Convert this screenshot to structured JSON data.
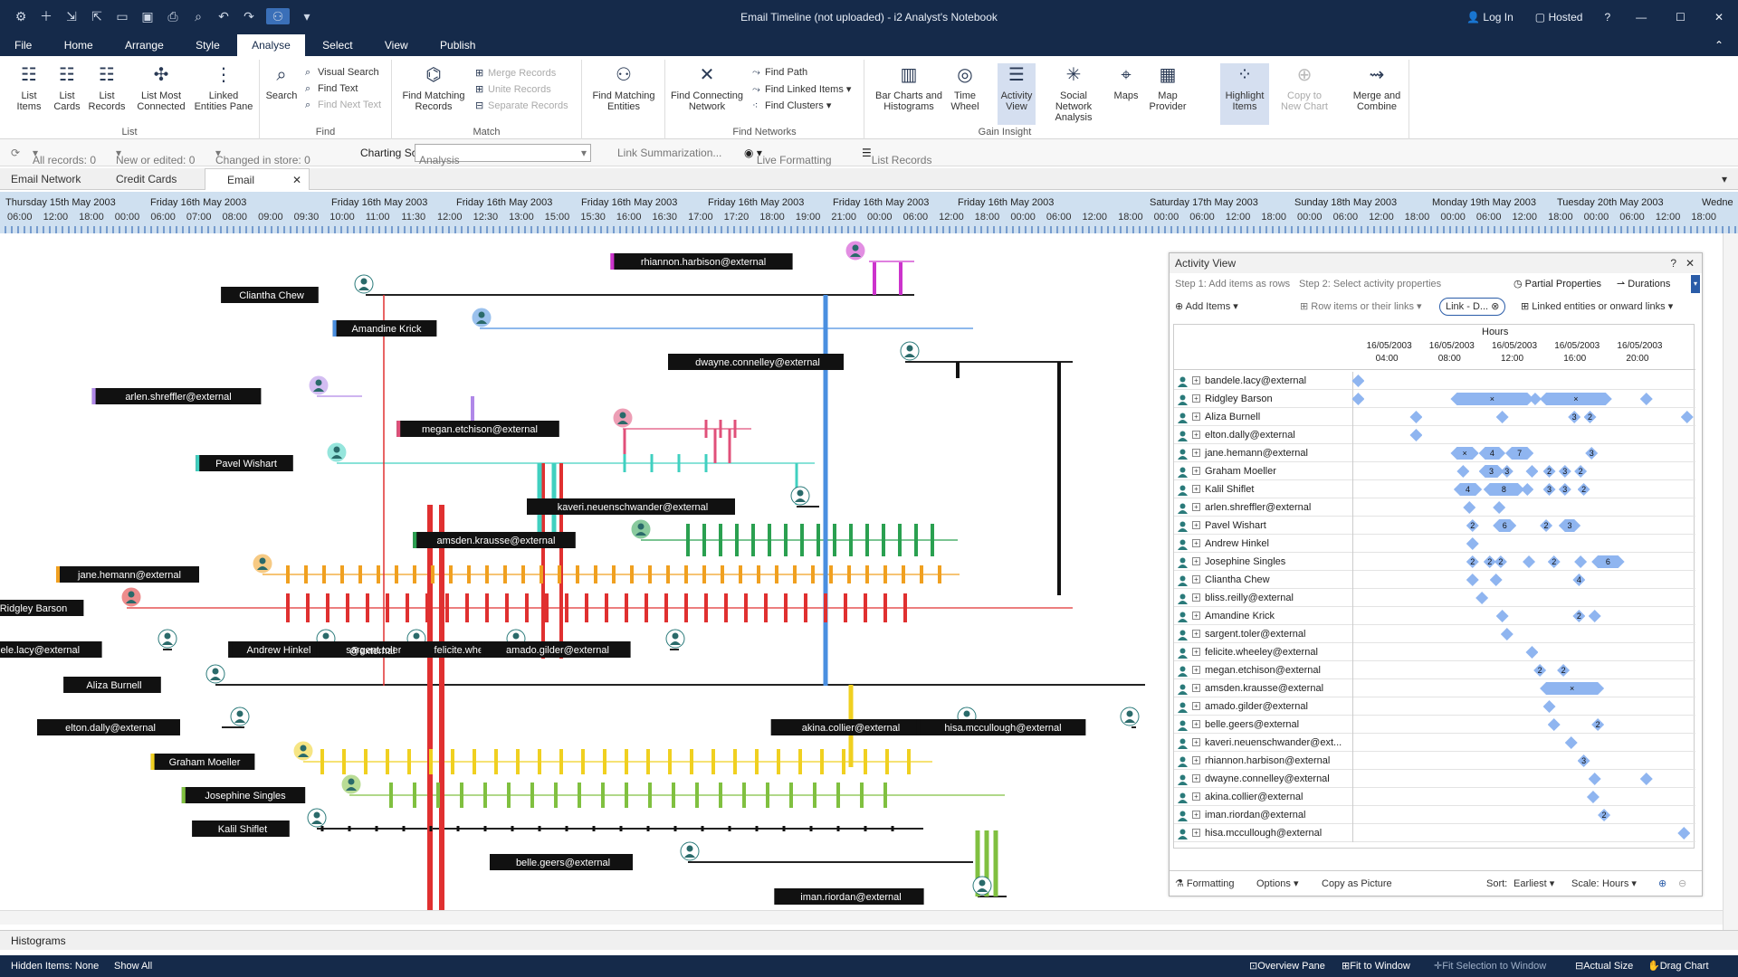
{
  "window": {
    "title": "Email Timeline (not uploaded) - i2 Analyst's Notebook",
    "login": "Log In",
    "hosted": "Hosted",
    "help": "?"
  },
  "menu": [
    "File",
    "Home",
    "Arrange",
    "Style",
    "Analyse",
    "Select",
    "View",
    "Publish"
  ],
  "ribbon": {
    "list": {
      "label": "List",
      "buttons": [
        "List Items",
        "List Cards",
        "List Records",
        "List Most Connected",
        "Linked Entities Pane"
      ]
    },
    "find": {
      "label": "Find",
      "search": "Search",
      "visual_search": "Visual Search",
      "find_text": "Find Text",
      "find_next_text": "Find Next Text"
    },
    "match": {
      "label": "Match",
      "find_matching_records": "Find Matching Records",
      "merge_records": "Merge Records",
      "unite_records": "Unite Records",
      "separate_records": "Separate Records",
      "find_matching_entities": "Find Matching Entities"
    },
    "find_networks": {
      "label": "Find Networks",
      "find_connecting_network": "Find Connecting Network",
      "find_path": "Find Path",
      "find_linked_items": "Find Linked Items",
      "find_clusters": "Find Clusters"
    },
    "gain_insight": {
      "label": "Gain Insight",
      "bar_charts": "Bar Charts and Histograms",
      "time_wheel": "Time Wheel",
      "activity_view": "Activity View",
      "sna": "Social Network Analysis",
      "maps": "Maps",
      "map_provider": "Map Provider",
      "highlight_items": "Highlight Items",
      "copy_to_new_chart": "Copy to New Chart",
      "merge_and_combine": "Merge and Combine"
    }
  },
  "toolbar": {
    "all_records": "All records: 0",
    "new_or_edited": "New or edited: 0",
    "changed_in_store": "Changed in store: 0",
    "charting_scheme_label": "Charting Scheme:",
    "charting_scheme_value": "Analysis",
    "link_summarization": "Link Summarization...",
    "live_formatting": "Live Formatting",
    "list_records": "List Records"
  },
  "tabs": [
    "Email Network",
    "Credit Cards",
    "Email Timeline"
  ],
  "timeline": {
    "dates": [
      "Thursday 15th May 2003",
      "Friday 16th May 2003",
      "Friday 16th May 2003",
      "Friday 16th May 2003",
      "Friday 16th May 2003",
      "Friday 16th May 2003",
      "Friday 16th May 2003",
      "Friday 16th May 2003",
      "Saturday 17th May 2003",
      "Sunday 18th May 2003",
      "Monday 19th May 2003",
      "Tuesday 20th May 2003",
      "Wedne"
    ],
    "times": [
      "06:00",
      "12:00",
      "18:00",
      "00:00",
      "06:00",
      "07:00",
      "08:00",
      "09:00",
      "09:30",
      "10:00",
      "11:00",
      "11:30",
      "12:00",
      "12:30",
      "13:00",
      "15:00",
      "15:30",
      "16:00",
      "16:30",
      "17:00",
      "17:20",
      "18:00",
      "19:00",
      "21:00",
      "00:00",
      "06:00",
      "12:00",
      "18:00",
      "00:00",
      "06:00",
      "12:00",
      "18:00",
      "00:00",
      "06:00",
      "12:00",
      "18:00",
      "00:00",
      "06:00",
      "12:00",
      "18:00",
      "00:00",
      "06:00",
      "12:00",
      "18:00",
      "00:00",
      "06:00",
      "12:00",
      "18:00"
    ]
  },
  "chart": {
    "entities": [
      {
        "label": "rhiannon.harbison@external",
        "color": "#cc33cc"
      },
      {
        "label": "Cliantha Chew",
        "color": "#111111"
      },
      {
        "label": "Amandine Krick",
        "color": "#4a8fe0"
      },
      {
        "label": "dwayne.connelley@external",
        "color": "#111111"
      },
      {
        "label": "arlen.shreffler@external",
        "color": "#b088e8"
      },
      {
        "label": "megan.etchison@external",
        "color": "#e0507a"
      },
      {
        "label": "Pavel Wishart",
        "color": "#40d0c0"
      },
      {
        "label": "kaveri.neuenschwander@external",
        "color": "#111111"
      },
      {
        "label": "amsden.krausse@external",
        "color": "#2aa050"
      },
      {
        "label": "jane.hemann@external",
        "color": "#f0a020"
      },
      {
        "label": "Ridgley Barson",
        "color": "#e03030"
      },
      {
        "label": "bandele.lacy@external",
        "color": "#111111"
      },
      {
        "label": "Andrew Hinkel",
        "color": "#111111"
      },
      {
        "label": "sargent.toler@external",
        "color": "#111111"
      },
      {
        "label": "felicite.wheeley@external",
        "color": "#111111"
      },
      {
        "label": "amado.gilder@external",
        "color": "#111111"
      },
      {
        "label": "Aliza Burnell",
        "color": "#111111"
      },
      {
        "label": "elton.dally@external",
        "color": "#111111"
      },
      {
        "label": "akina.collier@external",
        "color": "#111111"
      },
      {
        "label": "hisa.mccullough@external",
        "color": "#111111"
      },
      {
        "label": "Graham Moeller",
        "color": "#f0d020"
      },
      {
        "label": "Josephine Singles",
        "color": "#80c040"
      },
      {
        "label": "Kalil Shiflet",
        "color": "#111111"
      },
      {
        "label": "belle.geers@external",
        "color": "#111111"
      },
      {
        "label": "iman.riordan@external",
        "color": "#111111"
      }
    ],
    "overlap_label": "@external"
  },
  "activity_view": {
    "title": "Activity View",
    "step1": "Step 1: Add items as rows",
    "step2": "Step 2: Select activity properties",
    "partial_properties": "Partial Properties",
    "durations": "Durations",
    "add_items": "Add Items",
    "row_items": "Row items or their links",
    "link_filter": "Link - D...",
    "linked_entities": "Linked entities or onward links",
    "axis_title": "Hours",
    "axis_dates": [
      "16/05/2003",
      "16/05/2003",
      "16/05/2003",
      "16/05/2003",
      "16/05/2003"
    ],
    "axis_times": [
      "04:00",
      "08:00",
      "12:00",
      "16:00",
      "20:00"
    ],
    "rows": [
      {
        "name": "bandele.lacy@external",
        "bars": [
          {
            "start": 0.2,
            "end": 0.2,
            "label": ""
          }
        ]
      },
      {
        "name": "Ridgley Barson",
        "bars": [
          {
            "start": 0.2,
            "end": 0.2,
            "label": ""
          },
          {
            "start": 6.5,
            "end": 11.0,
            "label": "×"
          },
          {
            "start": 11.5,
            "end": 11.5,
            "label": ""
          },
          {
            "start": 12.2,
            "end": 16.0,
            "label": "×"
          },
          {
            "start": 18.6,
            "end": 18.6,
            "label": ""
          }
        ]
      },
      {
        "name": "Aliza Burnell",
        "bars": [
          {
            "start": 3.9,
            "end": 3.9,
            "label": ""
          },
          {
            "start": 9.4,
            "end": 9.4,
            "label": ""
          },
          {
            "start": 14.0,
            "end": 14.0,
            "label": "3"
          },
          {
            "start": 15.0,
            "end": 15.0,
            "label": "2"
          },
          {
            "start": 21.2,
            "end": 21.2,
            "label": ""
          }
        ]
      },
      {
        "name": "elton.dally@external",
        "bars": [
          {
            "start": 3.9,
            "end": 3.9,
            "label": ""
          }
        ]
      },
      {
        "name": "jane.hemann@external",
        "bars": [
          {
            "start": 6.5,
            "end": 7.5,
            "label": "×"
          },
          {
            "start": 8.3,
            "end": 9.2,
            "label": "4"
          },
          {
            "start": 10.0,
            "end": 11.0,
            "label": "7"
          },
          {
            "start": 15.1,
            "end": 15.1,
            "label": "3"
          }
        ]
      },
      {
        "name": "Graham Moeller",
        "bars": [
          {
            "start": 6.9,
            "end": 6.9,
            "label": ""
          },
          {
            "start": 8.3,
            "end": 9.1,
            "label": "3"
          },
          {
            "start": 9.7,
            "end": 9.7,
            "label": "3"
          },
          {
            "start": 11.3,
            "end": 11.3,
            "label": ""
          },
          {
            "start": 12.4,
            "end": 12.4,
            "label": "2"
          },
          {
            "start": 13.4,
            "end": 13.4,
            "label": "3"
          },
          {
            "start": 14.4,
            "end": 14.4,
            "label": "2"
          }
        ]
      },
      {
        "name": "Kalil Shiflet",
        "bars": [
          {
            "start": 6.7,
            "end": 7.7,
            "label": "4"
          },
          {
            "start": 8.6,
            "end": 10.4,
            "label": "8"
          },
          {
            "start": 11.0,
            "end": 11.0,
            "label": ""
          },
          {
            "start": 12.4,
            "end": 12.4,
            "label": "3"
          },
          {
            "start": 13.4,
            "end": 13.4,
            "label": "3"
          },
          {
            "start": 14.6,
            "end": 14.6,
            "label": "2"
          }
        ]
      },
      {
        "name": "arlen.shreffler@external",
        "bars": [
          {
            "start": 7.3,
            "end": 7.3,
            "label": ""
          },
          {
            "start": 9.2,
            "end": 9.2,
            "label": ""
          }
        ]
      },
      {
        "name": "Pavel Wishart",
        "bars": [
          {
            "start": 7.5,
            "end": 7.5,
            "label": "2"
          },
          {
            "start": 9.2,
            "end": 9.9,
            "label": "6"
          },
          {
            "start": 12.2,
            "end": 12.2,
            "label": "2"
          },
          {
            "start": 13.4,
            "end": 14.0,
            "label": "3"
          }
        ]
      },
      {
        "name": "Andrew Hinkel",
        "bars": [
          {
            "start": 7.5,
            "end": 7.5,
            "label": ""
          }
        ]
      },
      {
        "name": "Josephine Singles",
        "bars": [
          {
            "start": 7.5,
            "end": 7.5,
            "label": "2"
          },
          {
            "start": 8.6,
            "end": 8.6,
            "label": "2"
          },
          {
            "start": 9.3,
            "end": 9.3,
            "label": "2"
          },
          {
            "start": 11.1,
            "end": 11.1,
            "label": ""
          },
          {
            "start": 12.7,
            "end": 12.7,
            "label": "2"
          },
          {
            "start": 14.4,
            "end": 14.4,
            "label": ""
          },
          {
            "start": 15.5,
            "end": 16.8,
            "label": "6"
          }
        ]
      },
      {
        "name": "Cliantha Chew",
        "bars": [
          {
            "start": 7.5,
            "end": 7.5,
            "label": ""
          },
          {
            "start": 9.0,
            "end": 9.0,
            "label": ""
          },
          {
            "start": 14.3,
            "end": 14.3,
            "label": "4"
          }
        ]
      },
      {
        "name": "bliss.reilly@external",
        "bars": [
          {
            "start": 8.1,
            "end": 8.1,
            "label": ""
          }
        ]
      },
      {
        "name": "Amandine Krick",
        "bars": [
          {
            "start": 9.4,
            "end": 9.4,
            "label": ""
          },
          {
            "start": 14.3,
            "end": 14.3,
            "label": "2"
          },
          {
            "start": 15.3,
            "end": 15.3,
            "label": ""
          }
        ]
      },
      {
        "name": "sargent.toler@external",
        "bars": [
          {
            "start": 9.7,
            "end": 9.7,
            "label": ""
          }
        ]
      },
      {
        "name": "felicite.wheeley@external",
        "bars": [
          {
            "start": 11.3,
            "end": 11.3,
            "label": ""
          }
        ]
      },
      {
        "name": "megan.etchison@external",
        "bars": [
          {
            "start": 11.8,
            "end": 11.8,
            "label": "2"
          },
          {
            "start": 13.3,
            "end": 13.3,
            "label": "2"
          }
        ]
      },
      {
        "name": "amsden.krausse@external",
        "bars": [
          {
            "start": 12.2,
            "end": 15.5,
            "label": "×"
          }
        ]
      },
      {
        "name": "amado.gilder@external",
        "bars": [
          {
            "start": 12.4,
            "end": 12.4,
            "label": ""
          }
        ]
      },
      {
        "name": "belle.geers@external",
        "bars": [
          {
            "start": 12.7,
            "end": 12.7,
            "label": ""
          },
          {
            "start": 15.5,
            "end": 15.5,
            "label": "2"
          }
        ]
      },
      {
        "name": "kaveri.neuenschwander@ext...",
        "bars": [
          {
            "start": 13.8,
            "end": 13.8,
            "label": ""
          }
        ]
      },
      {
        "name": "rhiannon.harbison@external",
        "bars": [
          {
            "start": 14.6,
            "end": 14.6,
            "label": "3"
          }
        ]
      },
      {
        "name": "dwayne.connelley@external",
        "bars": [
          {
            "start": 15.3,
            "end": 15.3,
            "label": ""
          },
          {
            "start": 18.6,
            "end": 18.6,
            "label": ""
          }
        ]
      },
      {
        "name": "akina.collier@external",
        "bars": [
          {
            "start": 15.2,
            "end": 15.2,
            "label": ""
          }
        ]
      },
      {
        "name": "iman.riordan@external",
        "bars": [
          {
            "start": 15.9,
            "end": 15.9,
            "label": "2"
          }
        ]
      },
      {
        "name": "hisa.mccullough@external",
        "bars": [
          {
            "start": 21.0,
            "end": 21.0,
            "label": ""
          }
        ]
      }
    ],
    "footer": {
      "formatting": "Formatting",
      "options": "Options",
      "copy_as_picture": "Copy as Picture",
      "sort_label": "Sort:",
      "sort_value": "Earliest",
      "scale_label": "Scale:",
      "scale_value": "Hours"
    }
  },
  "histograms": "Histograms",
  "status": {
    "hidden_items": "Hidden Items: None",
    "show_all": "Show All",
    "overview_pane": "Overview Pane",
    "fit_to_window": "Fit to Window",
    "fit_selection": "Fit Selection to Window",
    "actual_size": "Actual Size",
    "drag_chart": "Drag Chart"
  },
  "colors": {
    "title_bar": "#152a4a",
    "accent": "#3a6fb8",
    "activity_bar": "#8fb5f0"
  }
}
